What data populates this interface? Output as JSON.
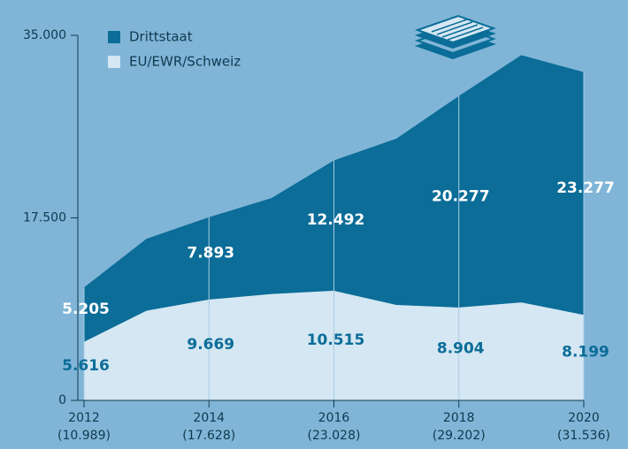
{
  "chart_data": {
    "type": "stacked_area",
    "categories": [
      "2012",
      null,
      "2014",
      null,
      "2016",
      null,
      "2018",
      null,
      "2020"
    ],
    "category_sublabels": [
      "(10.989)",
      null,
      "(17.628)",
      null,
      "(23.028)",
      null,
      "(29.202)",
      null,
      "(31.536)"
    ],
    "series": [
      {
        "name": "Drittstaat",
        "color": "#0b6d98",
        "label_color": "#ffffff",
        "values": [
          5205,
          6900,
          7893,
          9200,
          12492,
          15950,
          20277,
          23700,
          23277
        ],
        "value_labels": [
          "5.205",
          null,
          "7.893",
          null,
          "12.492",
          null,
          "20.277",
          null,
          "23.277"
        ]
      },
      {
        "name": "EU/EWR/Schweiz",
        "color": "#d4e7f2",
        "label_color": "#0b6d98",
        "values": [
          5616,
          8600,
          9669,
          10200,
          10515,
          9150,
          8904,
          9400,
          8199
        ],
        "value_labels": [
          "5.616",
          null,
          "9.669",
          null,
          "10.515",
          null,
          "8.904",
          null,
          "8.199"
        ]
      }
    ],
    "ylim": [
      0,
      35000
    ],
    "yticks": [
      {
        "value": 0,
        "label": "0"
      },
      {
        "value": 17500,
        "label": "17.500"
      },
      {
        "value": 35000,
        "label": "35.000"
      }
    ]
  }
}
